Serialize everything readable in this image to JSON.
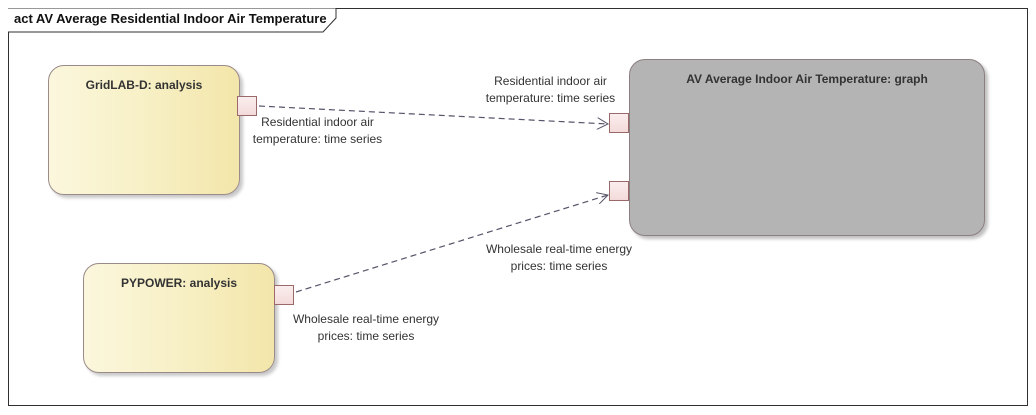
{
  "diagram": {
    "title": "act AV Average Residential Indoor Air Temperature",
    "nodes": {
      "gridlab": {
        "name": "GridLAB-D: analysis"
      },
      "pypower": {
        "name": "PYPOWER: analysis"
      },
      "graph": {
        "name": "AV Average Indoor Air Temperature: graph"
      }
    },
    "flows": {
      "temp_source_line1": "Residential indoor air",
      "temp_source_line2": "temperature: time series",
      "temp_target_line1": "Residential indoor air",
      "temp_target_line2": "temperature: time series",
      "price_source_line1": "Wholesale real-time energy",
      "price_source_line2": "prices: time series",
      "price_target_line1": "Wholesale real-time energy",
      "price_target_line2": "prices: time series"
    }
  }
}
